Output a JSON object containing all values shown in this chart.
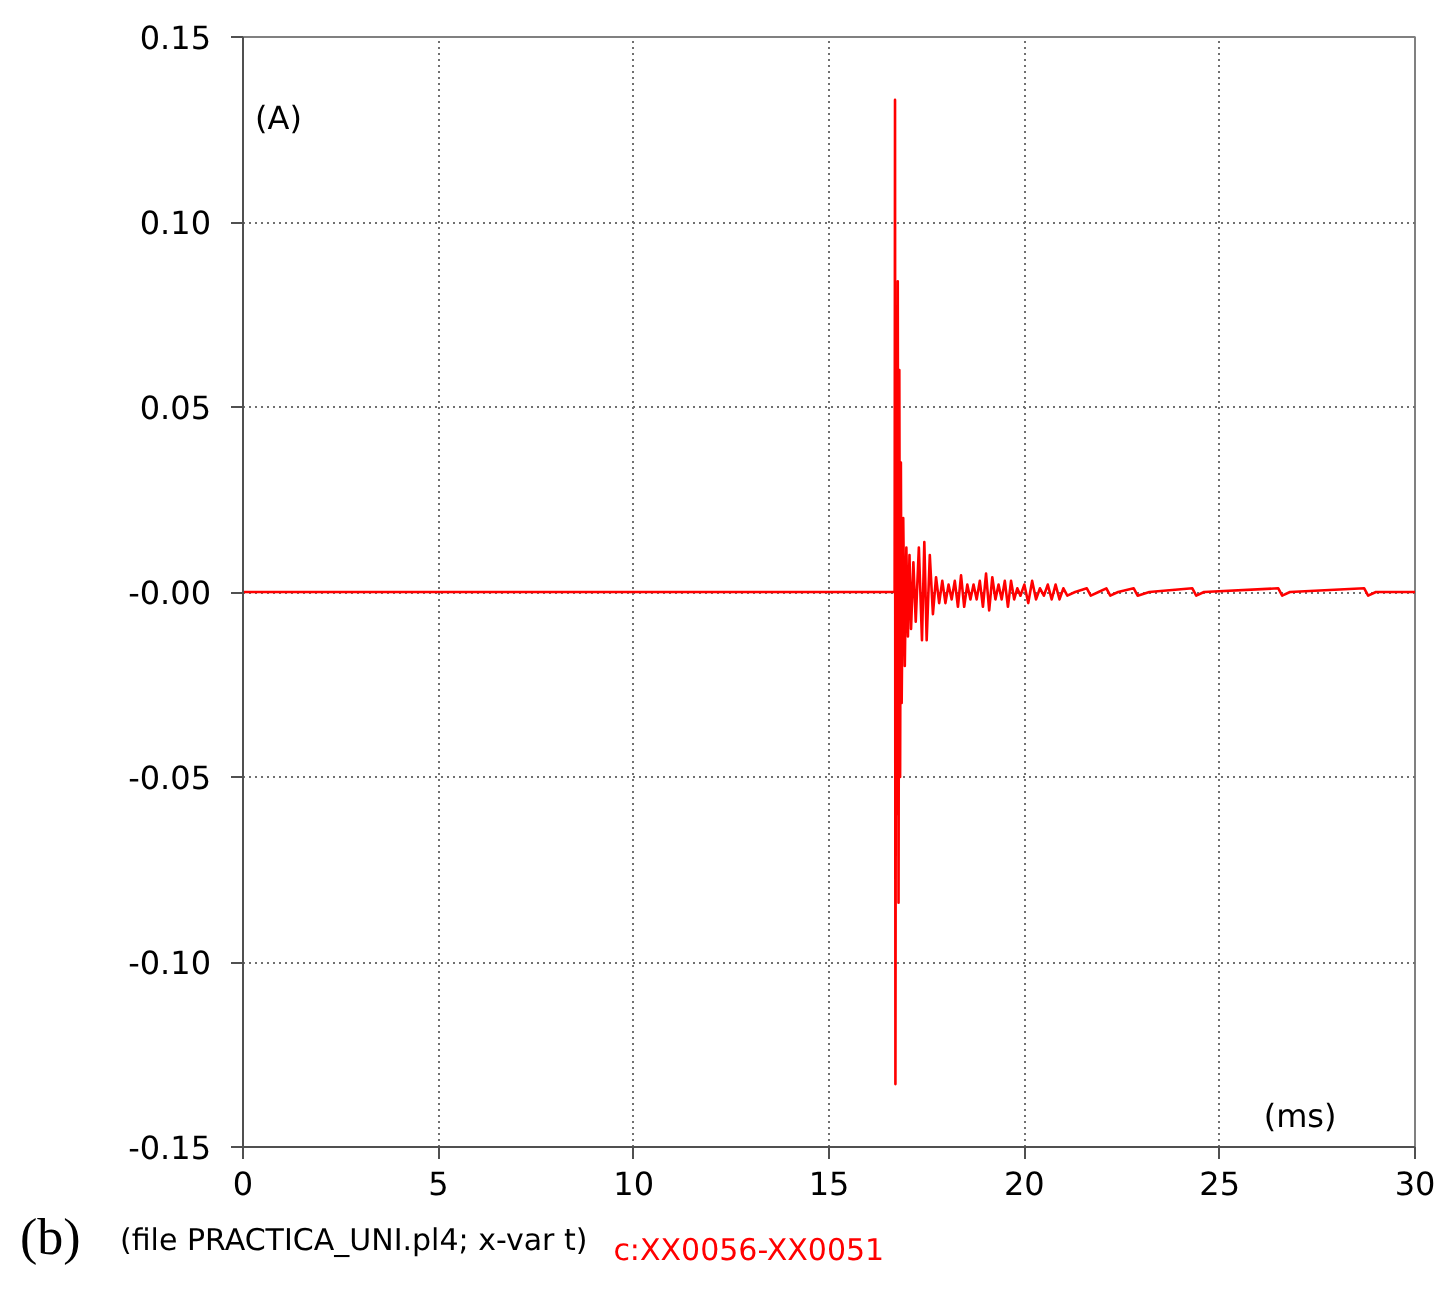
{
  "chart_data": {
    "type": "line",
    "xlabel": "(ms)",
    "ylabel": "(A)",
    "annotations": [
      "(b)",
      "(file PRACTICA_UNI.pl4; x-var t)"
    ],
    "xlim": [
      0,
      30
    ],
    "xticks": [
      0,
      5,
      10,
      15,
      20,
      25,
      30
    ],
    "ylim": [
      -0.15,
      0.15
    ],
    "yticks": [
      {
        "value": -0.15,
        "label": "-0.15"
      },
      {
        "value": -0.1,
        "label": "-0.10"
      },
      {
        "value": -0.05,
        "label": "-0.05"
      },
      {
        "value": 0,
        "label": "-0.00"
      },
      {
        "value": 0.05,
        "label": "0.05"
      },
      {
        "value": 0.1,
        "label": "0.10"
      },
      {
        "value": 0.15,
        "label": "0.15"
      }
    ],
    "grid": true,
    "line_style": "solid",
    "series": [
      {
        "name": "c:XX0056-XX0051",
        "color": "#ff0000",
        "x": [
          0,
          16.68,
          16.69,
          16.7,
          16.72,
          16.74,
          16.76,
          16.78,
          16.8,
          16.82,
          16.84,
          16.86,
          16.9,
          16.94,
          16.98,
          17.02,
          17.06,
          17.1,
          17.16,
          17.22,
          17.3,
          17.38,
          17.44,
          17.5,
          17.58,
          17.66,
          17.74,
          17.82,
          17.9,
          17.98,
          18.06,
          18.14,
          18.22,
          18.3,
          18.38,
          18.46,
          18.54,
          18.62,
          18.7,
          18.78,
          18.86,
          18.94,
          19.02,
          19.1,
          19.18,
          19.26,
          19.34,
          19.42,
          19.5,
          19.58,
          19.66,
          19.74,
          19.82,
          19.9,
          20.0,
          20.1,
          20.2,
          20.3,
          20.4,
          20.5,
          20.6,
          20.7,
          20.8,
          20.9,
          21.0,
          21.1,
          21.3,
          21.6,
          21.7,
          21.9,
          22.1,
          22.2,
          22.4,
          22.8,
          22.9,
          23.2,
          24.3,
          24.4,
          24.6,
          26.5,
          26.6,
          26.8,
          28.7,
          28.8,
          29.0,
          30
        ],
        "values": [
          0,
          0,
          0.133,
          -0.133,
          0.05,
          -0.06,
          0.084,
          -0.084,
          0.06,
          -0.05,
          0.035,
          -0.03,
          0.02,
          -0.02,
          0.012,
          -0.012,
          0.01,
          -0.01,
          0.008,
          -0.008,
          0.012,
          -0.013,
          0.0135,
          -0.013,
          0.01,
          -0.006,
          0.004,
          -0.003,
          0.003,
          -0.003,
          0.002,
          -0.002,
          0.003,
          -0.004,
          0.0045,
          -0.004,
          0.002,
          -0.002,
          0.002,
          -0.002,
          0.003,
          -0.004,
          0.005,
          -0.005,
          0.004,
          -0.002,
          0.002,
          -0.002,
          0.003,
          -0.004,
          0.003,
          -0.002,
          0.001,
          -0.001,
          0.002,
          -0.003,
          0.003,
          -0.002,
          0.001,
          -0.001,
          0.002,
          -0.002,
          0.002,
          -0.002,
          0.001,
          -0.001,
          0,
          0.001,
          -0.001,
          0,
          0.001,
          -0.001,
          0,
          0.001,
          -0.001,
          0,
          0.001,
          -0.001,
          0,
          0.001,
          -0.001,
          0,
          0.001,
          -0.001,
          0,
          0
        ]
      }
    ]
  }
}
